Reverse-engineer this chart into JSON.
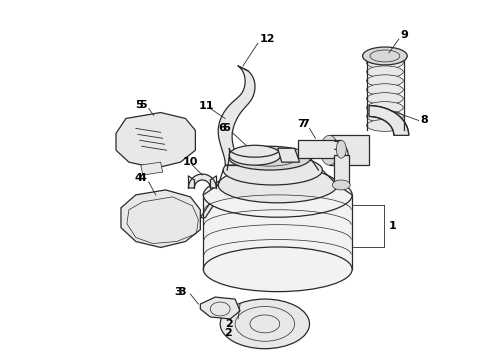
{
  "bg_color": "#ffffff",
  "line_color": "#2a2a2a",
  "label_color": "#000000",
  "fig_width": 4.9,
  "fig_height": 3.6,
  "dpi": 100
}
